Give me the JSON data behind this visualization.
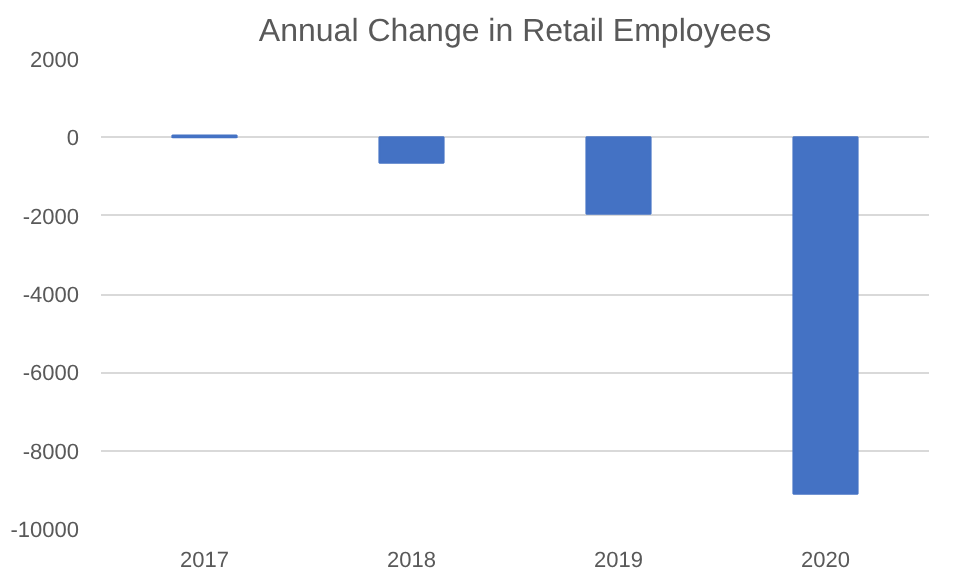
{
  "chart_data": {
    "type": "bar",
    "title": "Annual Change in Retail Employees",
    "categories": [
      "2017",
      "2018",
      "2019",
      "2020"
    ],
    "values": [
      50,
      -650,
      -1950,
      -9100
    ],
    "color": "#4472c4",
    "ylim": [
      -10000,
      2000
    ],
    "yticks": [
      -10000,
      -8000,
      -6000,
      -4000,
      -2000,
      0,
      2000
    ],
    "grid": "y"
  }
}
